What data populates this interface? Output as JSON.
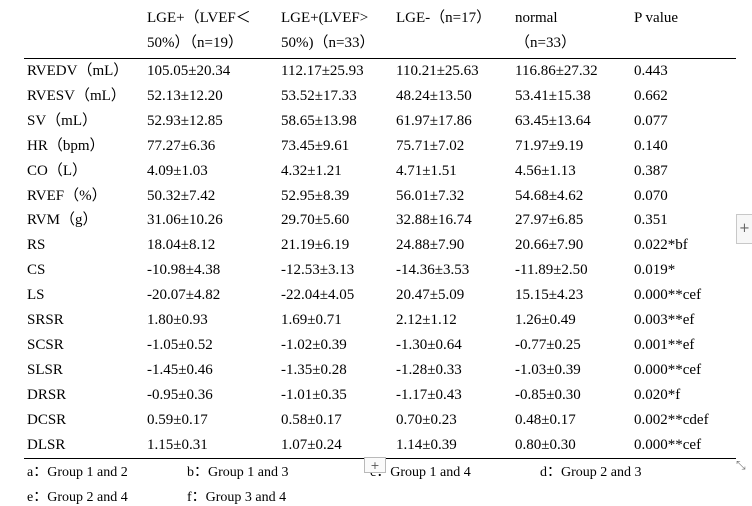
{
  "table": {
    "headers": [
      {
        "line1": "",
        "line2": ""
      },
      {
        "line1": "LGE+（LVEF＜",
        "line2": "50%）（n=19）"
      },
      {
        "line1": "LGE+(LVEF>",
        "line2": "50%)（n=33）"
      },
      {
        "line1": "LGE-（n=17）",
        "line2": ""
      },
      {
        "line1": "normal",
        "line2": "（n=33）"
      },
      {
        "line1": "P value",
        "line2": ""
      }
    ],
    "rows": [
      [
        "RVEDV（mL）",
        "105.05±20.34",
        "112.17±25.93",
        "110.21±25.63",
        "116.86±27.32",
        "0.443"
      ],
      [
        "RVESV（mL）",
        "52.13±12.20",
        "53.52±17.33",
        "48.24±13.50",
        "53.41±15.38",
        "0.662"
      ],
      [
        "SV（mL）",
        "52.93±12.85",
        "58.65±13.98",
        "61.97±17.86",
        "63.45±13.64",
        "0.077"
      ],
      [
        "HR（bpm）",
        "77.27±6.36",
        "73.45±9.61",
        "75.71±7.02",
        "71.97±9.19",
        "0.140"
      ],
      [
        "CO（L）",
        "4.09±1.03",
        "4.32±1.21",
        "4.71±1.51",
        "4.56±1.13",
        "0.387"
      ],
      [
        "RVEF（%）",
        "50.32±7.42",
        "52.95±8.39",
        "56.01±7.32",
        "54.68±4.62",
        "0.070"
      ],
      [
        "RVM（g）",
        "31.06±10.26",
        "29.70±5.60",
        "32.88±16.74",
        "27.97±6.85",
        "0.351"
      ],
      [
        "RS",
        "18.04±8.12",
        "21.19±6.19",
        "24.88±7.90",
        "20.66±7.90",
        "0.022*bf"
      ],
      [
        "CS",
        "-10.98±4.38",
        "-12.53±3.13",
        "-14.36±3.53",
        "-11.89±2.50",
        "0.019*"
      ],
      [
        "LS",
        "-20.07±4.82",
        "-22.04±4.05",
        "20.47±5.09",
        "15.15±4.23",
        "0.000**cef"
      ],
      [
        "SRSR",
        "1.80±0.93",
        "1.69±0.71",
        "2.12±1.12",
        "1.26±0.49",
        "0.003**ef"
      ],
      [
        "SCSR",
        "-1.05±0.52",
        "-1.02±0.39",
        "-1.30±0.64",
        "-0.77±0.25",
        "0.001**ef"
      ],
      [
        "SLSR",
        "-1.45±0.46",
        "-1.35±0.28",
        "-1.28±0.33",
        "-1.03±0.39",
        "0.000**cef"
      ],
      [
        "DRSR",
        "-0.95±0.36",
        "-1.01±0.35",
        "-1.17±0.43",
        "-0.85±0.30",
        "0.020*f"
      ],
      [
        "DCSR",
        "0.59±0.17",
        "0.58±0.17",
        "0.70±0.23",
        "0.48±0.17",
        "0.002**cdef"
      ],
      [
        "DLSR",
        "1.15±0.31",
        "1.07±0.24",
        "1.14±0.39",
        "0.80±0.30",
        "0.000**cef"
      ]
    ]
  },
  "footnotes": [
    "a：Group 1 and 2",
    "b：Group 1 and 3",
    "c：Group 1 and 4",
    "d：Group 2 and 3",
    "e：Group 2 and 4",
    "f：Group 3 and 4"
  ],
  "controls": {
    "plus_glyph": "+",
    "resize_glyph": "⤡"
  }
}
